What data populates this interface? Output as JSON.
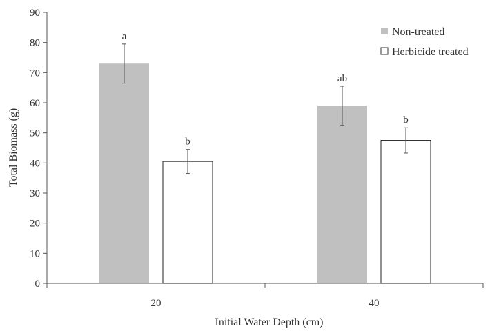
{
  "chart_data": {
    "type": "bar",
    "title": "",
    "xlabel": "Initial Water Depth (cm)",
    "ylabel": "Total Biomass (g)",
    "ylim": [
      0,
      90
    ],
    "yticks": [
      0,
      10,
      20,
      30,
      40,
      50,
      60,
      70,
      80,
      90
    ],
    "categories": [
      "20",
      "40"
    ],
    "grid": false,
    "legend_position": "top-right",
    "series": [
      {
        "name": "Non-treated",
        "color": "#c0c0c0",
        "values": [
          73,
          59
        ],
        "error": [
          6.5,
          6.5
        ],
        "labels": [
          "a",
          "ab"
        ]
      },
      {
        "name": "Herbicide treated",
        "color": "#ffffff",
        "values": [
          40.5,
          47.5
        ],
        "error": [
          4,
          4.2
        ],
        "labels": [
          "b",
          "b"
        ]
      }
    ]
  }
}
